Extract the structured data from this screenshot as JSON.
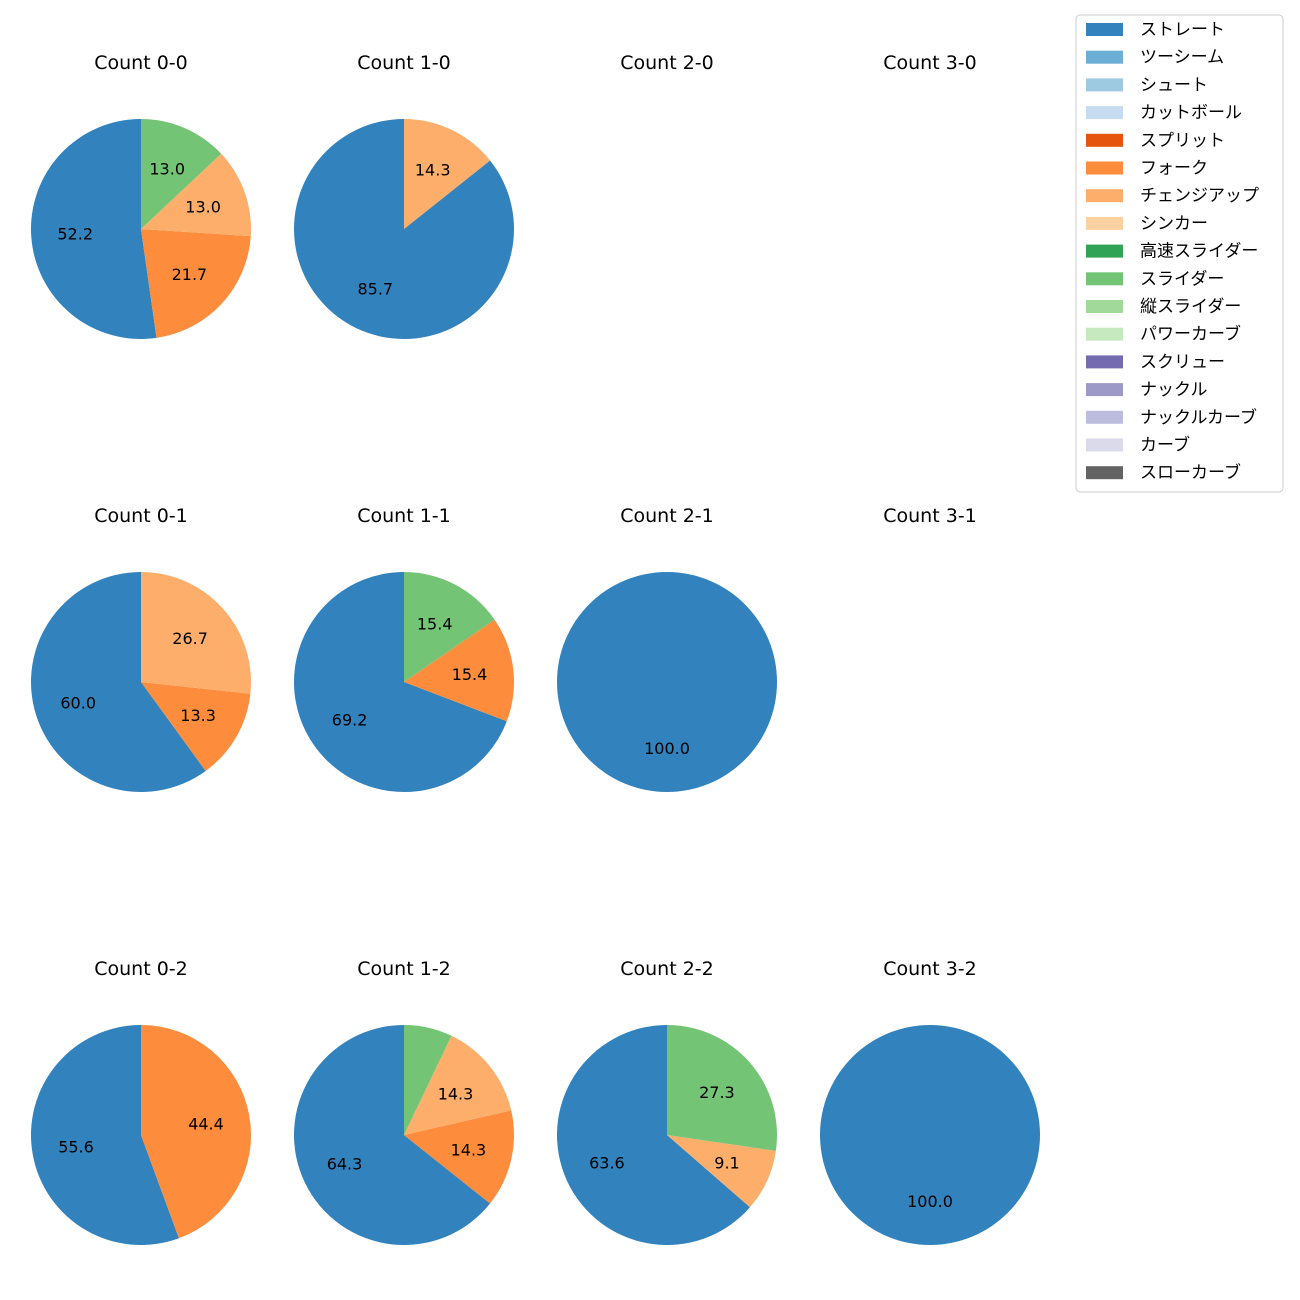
{
  "pitch_types": [
    {
      "name": "ストレート",
      "color": "#3182bd"
    },
    {
      "name": "ツーシーム",
      "color": "#6baed6"
    },
    {
      "name": "シュート",
      "color": "#9ecae1"
    },
    {
      "name": "カットボール",
      "color": "#c6dbef"
    },
    {
      "name": "スプリット",
      "color": "#e6550d"
    },
    {
      "name": "フォーク",
      "color": "#fd8d3c"
    },
    {
      "name": "チェンジアップ",
      "color": "#fdae6b"
    },
    {
      "name": "シンカー",
      "color": "#fdd0a2"
    },
    {
      "name": "高速スライダー",
      "color": "#31a354"
    },
    {
      "name": "スライダー",
      "color": "#74c476"
    },
    {
      "name": "縦スライダー",
      "color": "#a1d99b"
    },
    {
      "name": "パワーカーブ",
      "color": "#c7e9c0"
    },
    {
      "name": "スクリュー",
      "color": "#756bb1"
    },
    {
      "name": "ナックル",
      "color": "#9e9ac8"
    },
    {
      "name": "ナックルカーブ",
      "color": "#bcbddc"
    },
    {
      "name": "カーブ",
      "color": "#dadaeb"
    },
    {
      "name": "スローカーブ",
      "color": "#636363"
    }
  ],
  "chart_data": [
    {
      "type": "pie",
      "title": "Count 0-0",
      "slices": [
        {
          "pitch": "ストレート",
          "value": 52.2,
          "label": "52.2"
        },
        {
          "pitch": "フォーク",
          "value": 21.7,
          "label": "21.7"
        },
        {
          "pitch": "チェンジアップ",
          "value": 13.0,
          "label": "13.0"
        },
        {
          "pitch": "スライダー",
          "value": 13.0,
          "label": "13.0"
        }
      ]
    },
    {
      "type": "pie",
      "title": "Count 1-0",
      "slices": [
        {
          "pitch": "ストレート",
          "value": 85.7,
          "label": "85.7"
        },
        {
          "pitch": "チェンジアップ",
          "value": 14.3,
          "label": "14.3"
        }
      ]
    },
    {
      "type": "pie",
      "title": "Count 2-0",
      "slices": []
    },
    {
      "type": "pie",
      "title": "Count 3-0",
      "slices": []
    },
    {
      "type": "pie",
      "title": "Count 0-1",
      "slices": [
        {
          "pitch": "ストレート",
          "value": 60.0,
          "label": "60.0"
        },
        {
          "pitch": "フォーク",
          "value": 13.3,
          "label": "13.3"
        },
        {
          "pitch": "チェンジアップ",
          "value": 26.7,
          "label": "26.7"
        }
      ]
    },
    {
      "type": "pie",
      "title": "Count 1-1",
      "slices": [
        {
          "pitch": "ストレート",
          "value": 69.2,
          "label": "69.2"
        },
        {
          "pitch": "フォーク",
          "value": 15.4,
          "label": "15.4"
        },
        {
          "pitch": "スライダー",
          "value": 15.4,
          "label": "15.4"
        }
      ]
    },
    {
      "type": "pie",
      "title": "Count 2-1",
      "slices": [
        {
          "pitch": "ストレート",
          "value": 100.0,
          "label": "100.0"
        }
      ]
    },
    {
      "type": "pie",
      "title": "Count 3-1",
      "slices": []
    },
    {
      "type": "pie",
      "title": "Count 0-2",
      "slices": [
        {
          "pitch": "ストレート",
          "value": 55.6,
          "label": "55.6"
        },
        {
          "pitch": "フォーク",
          "value": 44.4,
          "label": "44.4"
        }
      ]
    },
    {
      "type": "pie",
      "title": "Count 1-2",
      "slices": [
        {
          "pitch": "ストレート",
          "value": 64.3,
          "label": "64.3"
        },
        {
          "pitch": "フォーク",
          "value": 14.3,
          "label": "14.3"
        },
        {
          "pitch": "チェンジアップ",
          "value": 14.3,
          "label": "14.3"
        },
        {
          "pitch": "スライダー",
          "value": 7.1,
          "label": ""
        }
      ]
    },
    {
      "type": "pie",
      "title": "Count 2-2",
      "slices": [
        {
          "pitch": "ストレート",
          "value": 63.6,
          "label": "63.6"
        },
        {
          "pitch": "チェンジアップ",
          "value": 9.1,
          "label": "9.1"
        },
        {
          "pitch": "スライダー",
          "value": 27.3,
          "label": "27.3"
        }
      ]
    },
    {
      "type": "pie",
      "title": "Count 3-2",
      "slices": [
        {
          "pitch": "ストレート",
          "value": 100.0,
          "label": "100.0"
        }
      ]
    }
  ]
}
